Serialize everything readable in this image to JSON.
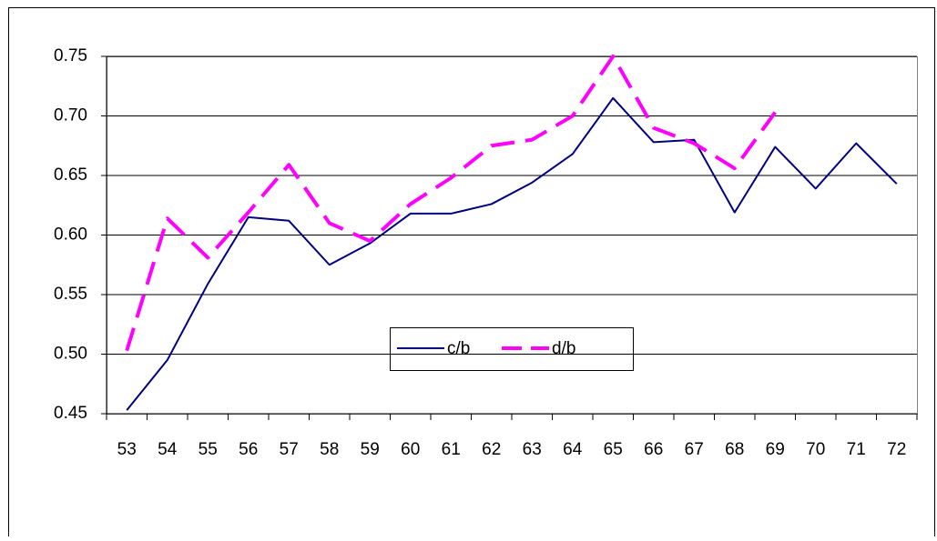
{
  "chart_data": {
    "type": "line",
    "categories": [
      53,
      54,
      55,
      56,
      57,
      58,
      59,
      60,
      61,
      62,
      63,
      64,
      65,
      66,
      67,
      68,
      69,
      70,
      71,
      72
    ],
    "series": [
      {
        "name": "c/b",
        "color": "#000080",
        "dash": false,
        "values": [
          0.453,
          0.495,
          0.559,
          0.615,
          0.612,
          0.575,
          0.593,
          0.618,
          0.618,
          0.626,
          0.644,
          0.668,
          0.715,
          0.678,
          0.68,
          0.619,
          0.674,
          0.639,
          0.677,
          0.643
        ]
      },
      {
        "name": "d/b",
        "color": "#ff00ff",
        "dash": true,
        "values": [
          0.503,
          0.614,
          0.581,
          0.619,
          0.659,
          0.61,
          0.595,
          0.626,
          0.648,
          0.675,
          0.68,
          0.7,
          0.75,
          0.69,
          0.677,
          0.656,
          0.703,
          null,
          null,
          null
        ]
      }
    ],
    "ylim": [
      0.45,
      0.75
    ],
    "yticks": [
      0.45,
      {
        "value": 0.5,
        "label": "0.50"
      },
      0.55,
      {
        "value": 0.6,
        "label": "0.60"
      },
      0.65,
      {
        "value": 0.7,
        "label": "0.70"
      },
      0.75
    ],
    "grid": true,
    "legend": "bottom"
  }
}
